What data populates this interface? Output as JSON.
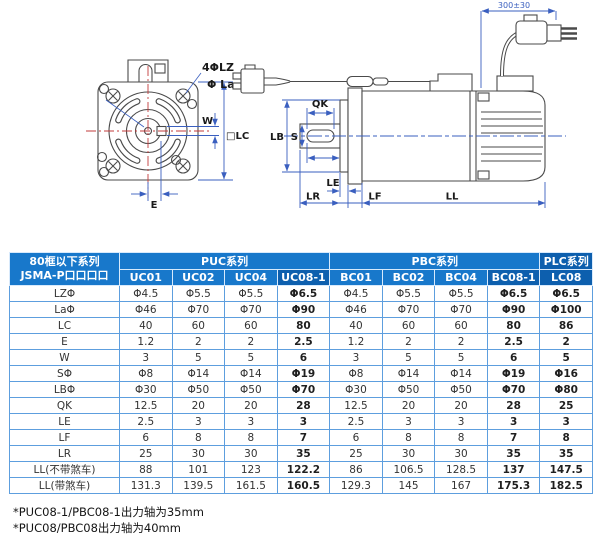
{
  "diagram": {
    "front_view": {
      "bolt_note": "4ΦLZ",
      "pilot_note": "Φ La",
      "w_label": "W",
      "lc_label": "□LC",
      "e_label": "E"
    },
    "side_view": {
      "lb_label": "LB",
      "s_label": "S",
      "qk_label": "QK",
      "le_label": "LE",
      "lr_label": "LR",
      "lf_label": "LF",
      "ll_label": "LL",
      "cable_dim": "300±30"
    }
  },
  "table": {
    "corner_line1": "80框以下系列",
    "corner_line2": "JSMA-P口口口口",
    "groups": [
      {
        "label": "PUC系列",
        "span": 4,
        "highlight": false
      },
      {
        "label": "PBC系列",
        "span": 4,
        "highlight": false
      },
      {
        "label": "PLC系列",
        "span": 1,
        "highlight": true
      }
    ],
    "columns": [
      {
        "label": "UC01",
        "highlight": false
      },
      {
        "label": "UC02",
        "highlight": false
      },
      {
        "label": "UC04",
        "highlight": false
      },
      {
        "label": "UC08-1",
        "highlight": true
      },
      {
        "label": "BC01",
        "highlight": false
      },
      {
        "label": "BC02",
        "highlight": false
      },
      {
        "label": "BC04",
        "highlight": false
      },
      {
        "label": "BC08-1",
        "highlight": true
      },
      {
        "label": "LC08",
        "highlight": true
      }
    ],
    "rows": [
      {
        "label": "LZΦ",
        "values": [
          "Φ4.5",
          "Φ5.5",
          "Φ5.5",
          "Φ6.5",
          "Φ4.5",
          "Φ5.5",
          "Φ5.5",
          "Φ6.5",
          "Φ6.5"
        ]
      },
      {
        "label": "LaΦ",
        "values": [
          "Φ46",
          "Φ70",
          "Φ70",
          "Φ90",
          "Φ46",
          "Φ70",
          "Φ70",
          "Φ90",
          "Φ100"
        ]
      },
      {
        "label": "LC",
        "values": [
          "40",
          "60",
          "60",
          "80",
          "40",
          "60",
          "60",
          "80",
          "86"
        ]
      },
      {
        "label": "E",
        "values": [
          "1.2",
          "2",
          "2",
          "2.5",
          "1.2",
          "2",
          "2",
          "2.5",
          "2"
        ]
      },
      {
        "label": "W",
        "values": [
          "3",
          "5",
          "5",
          "6",
          "3",
          "5",
          "5",
          "6",
          "5"
        ]
      },
      {
        "label": "SΦ",
        "values": [
          "Φ8",
          "Φ14",
          "Φ14",
          "Φ19",
          "Φ8",
          "Φ14",
          "Φ14",
          "Φ19",
          "Φ16"
        ]
      },
      {
        "label": "LBΦ",
        "values": [
          "Φ30",
          "Φ50",
          "Φ50",
          "Φ70",
          "Φ30",
          "Φ50",
          "Φ50",
          "Φ70",
          "Φ80"
        ]
      },
      {
        "label": "QK",
        "values": [
          "12.5",
          "20",
          "20",
          "28",
          "12.5",
          "20",
          "20",
          "28",
          "25"
        ]
      },
      {
        "label": "LE",
        "values": [
          "2.5",
          "3",
          "3",
          "3",
          "2.5",
          "3",
          "3",
          "3",
          "3"
        ]
      },
      {
        "label": "LF",
        "values": [
          "6",
          "8",
          "8",
          "7",
          "6",
          "8",
          "8",
          "7",
          "8"
        ]
      },
      {
        "label": "LR",
        "values": [
          "25",
          "30",
          "30",
          "35",
          "25",
          "30",
          "30",
          "35",
          "35"
        ]
      },
      {
        "label": "LL(不带煞车)",
        "values": [
          "88",
          "101",
          "123",
          "122.2",
          "86",
          "106.5",
          "128.5",
          "137",
          "147.5"
        ]
      },
      {
        "label": "LL(带煞车)",
        "values": [
          "131.3",
          "139.5",
          "161.5",
          "160.5",
          "129.3",
          "145",
          "167",
          "175.3",
          "182.5"
        ]
      }
    ]
  },
  "notes": [
    "*PUC08-1/PBC08-1出力轴为35mm",
    "*PUC08/PBC08出力轴为40mm"
  ],
  "colors": {
    "header_blue": "#1878cb",
    "header_dark_blue": "#0d5fae",
    "table_border_blue": "#5d9ede",
    "dimension_blue": "#3a5fbf",
    "centerline_red": "#c23b3b",
    "drawing_line": "#4a4a4a"
  }
}
